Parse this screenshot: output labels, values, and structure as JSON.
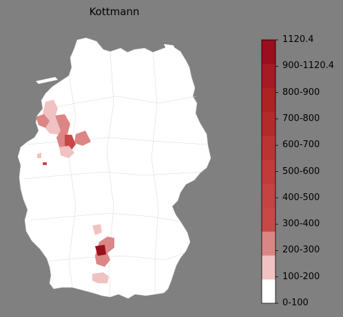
{
  "title": "Kottmann",
  "legend": {
    "labels": [
      "1120.4",
      "900-1120.4",
      "800-900",
      "700-800",
      "600-700",
      "500-600",
      "400-500",
      "300-400",
      "200-300",
      "100-200",
      "0-100"
    ],
    "bands": [
      {
        "range": "0-100",
        "color": "#ffffff"
      },
      {
        "range": "100-200",
        "color": "#f1c2c2"
      },
      {
        "range": "200-300",
        "color": "#dc8585"
      },
      {
        "range": "300-400",
        "color": "#c84848"
      },
      {
        "range": "400-500",
        "color": "#c64343"
      },
      {
        "range": "500-600",
        "color": "#c23a3a"
      },
      {
        "range": "600-700",
        "color": "#bb3434"
      },
      {
        "range": "700-800",
        "color": "#b32a2a"
      },
      {
        "range": "800-900",
        "color": "#ad2222"
      },
      {
        "range": "900-1120.4",
        "color": "#a51a24"
      },
      {
        "range": "1120.4",
        "color": "#9b0e1e"
      }
    ]
  },
  "map": {
    "background": "#808080",
    "land_color": "#ffffff",
    "border_color": "#cccccc"
  },
  "highlighted_regions": [
    {
      "name": "northwest-cluster-light",
      "band": "100-200"
    },
    {
      "name": "northwest-cluster-medium",
      "band": "200-300"
    },
    {
      "name": "northwest-cluster-dark",
      "band": "300-400"
    },
    {
      "name": "west-small-spot",
      "band": "300-400"
    },
    {
      "name": "south-cluster-medium",
      "band": "200-300"
    },
    {
      "name": "south-cluster-dark",
      "band": "1120.4"
    },
    {
      "name": "south-lower-light",
      "band": "100-200"
    }
  ]
}
